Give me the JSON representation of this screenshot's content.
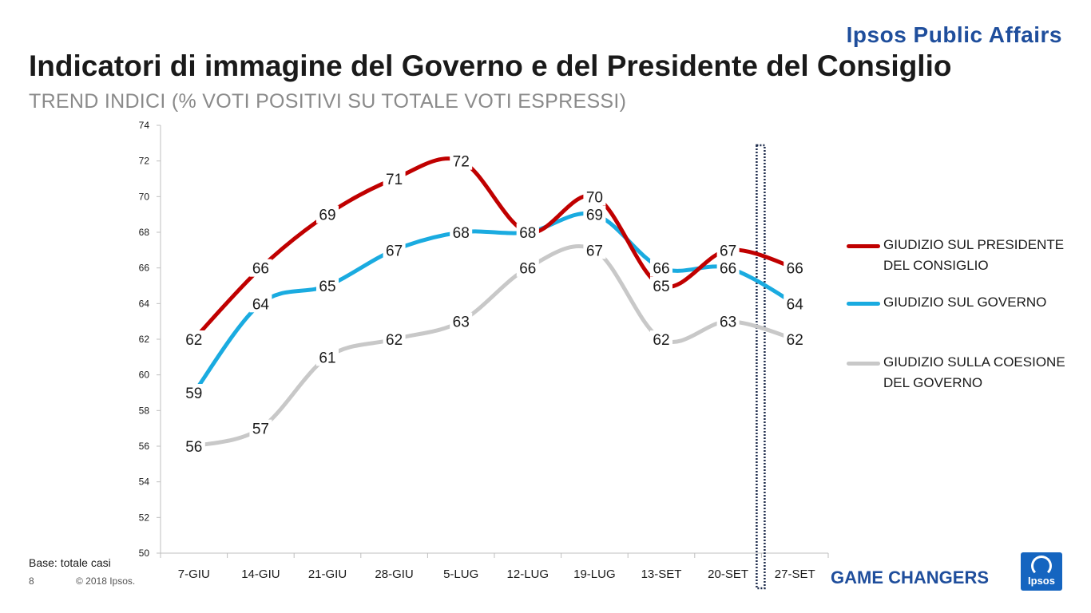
{
  "header": {
    "brand": "Ipsos Public Affairs",
    "title": "Indicatori di immagine del Governo e del Presidente del Consiglio",
    "subtitle": "TREND INDICI (% VOTI POSITIVI SU TOTALE VOTI ESPRESSI)"
  },
  "chart_data": {
    "type": "line",
    "categories": [
      "7-GIU",
      "14-GIU",
      "21-GIU",
      "28-GIU",
      "5-LUG",
      "12-LUG",
      "19-LUG",
      "13-SET",
      "20-SET",
      "27-SET"
    ],
    "ylim": [
      50,
      74
    ],
    "yticks": [
      50,
      52,
      54,
      56,
      58,
      60,
      62,
      64,
      66,
      68,
      70,
      72,
      74
    ],
    "grid": false,
    "legend_position": "right",
    "series": [
      {
        "name": "GIUDIZIO SUL PRESIDENTE DEL CONSIGLIO",
        "color": "#c00000",
        "values": [
          62,
          66,
          69,
          71,
          72,
          68,
          70,
          65,
          67,
          66
        ]
      },
      {
        "name": "GIUDIZIO SUL GOVERNO",
        "color": "#1aabe0",
        "values": [
          59,
          64,
          65,
          67,
          68,
          68,
          69,
          66,
          66,
          64
        ]
      },
      {
        "name": "GIUDIZIO SULLA COESIONE DEL GOVERNO",
        "color": "#c8c8c8",
        "values": [
          56,
          57,
          61,
          62,
          63,
          66,
          67,
          62,
          63,
          62
        ]
      }
    ],
    "highlight_category": "27-SET"
  },
  "legend": {
    "items": [
      {
        "line1": "GIUDIZIO SUL PRESIDENTE",
        "line2": "DEL CONSIGLIO",
        "color": "#c00000"
      },
      {
        "line1": "GIUDIZIO SUL GOVERNO",
        "line2": "",
        "color": "#1aabe0"
      },
      {
        "line1": "GIUDIZIO SULLA COESIONE",
        "line2": "DEL GOVERNO",
        "color": "#c8c8c8"
      }
    ]
  },
  "footer": {
    "base": "Base: totale casi",
    "page": "8",
    "copyright": "© 2018 Ipsos.",
    "tagline": "GAME CHANGERS",
    "logo_text": "Ipsos"
  }
}
